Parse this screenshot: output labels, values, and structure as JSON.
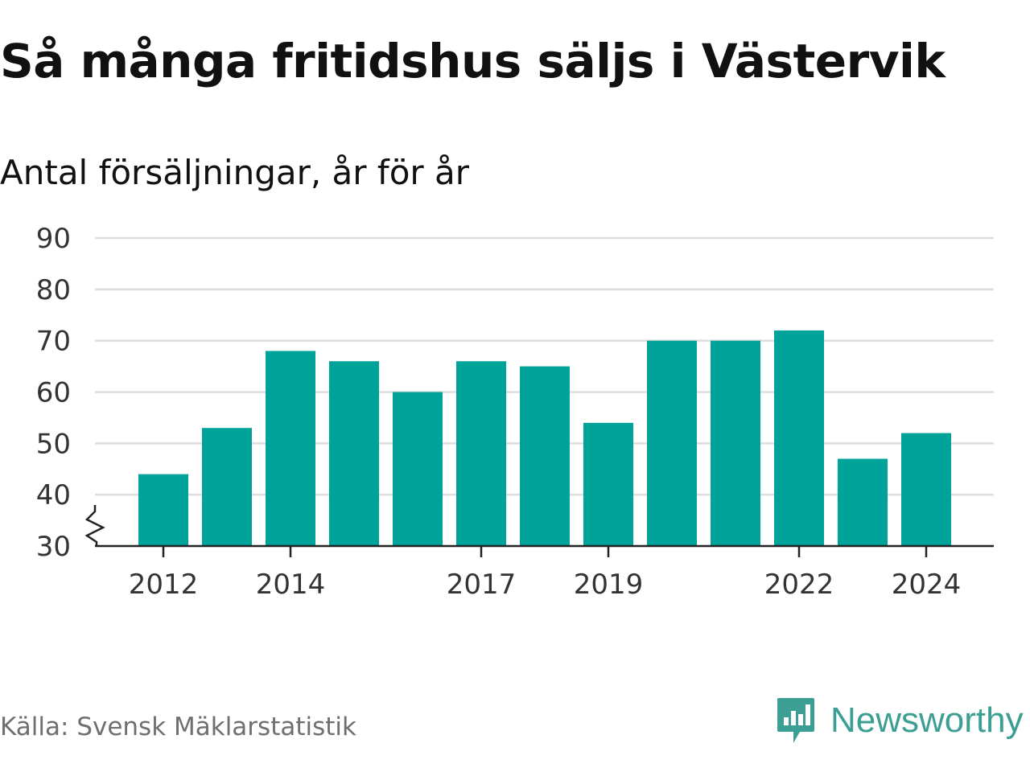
{
  "header": {
    "title": "Så många fritidshus säljs i Västervik",
    "subtitle": "Antal försäljningar, år för år"
  },
  "footer": {
    "source": "Källa: Svensk Mäklarstatistik",
    "brand": "Newsworthy",
    "brand_icon": "chat-bubble-bar-chart-icon",
    "brand_color": "#3d9e93"
  },
  "colors": {
    "bar": "#00a39a",
    "grid": "#dddddd",
    "axis": "#222222"
  },
  "chart_data": {
    "type": "bar",
    "categories": [
      "2012",
      "2013",
      "2014",
      "2015",
      "2016",
      "2017",
      "2018",
      "2019",
      "2020",
      "2021",
      "2022",
      "2023",
      "2024"
    ],
    "values": [
      44,
      53,
      68,
      66,
      60,
      66,
      65,
      54,
      70,
      70,
      72,
      47,
      52
    ],
    "x_tick_labels": [
      "2012",
      "2014",
      "2017",
      "2019",
      "2022",
      "2024"
    ],
    "y_ticks": [
      30,
      40,
      50,
      60,
      70,
      80,
      90
    ],
    "ylim": [
      30,
      90
    ],
    "y_axis_break": true,
    "grid": true,
    "title": "Så många fritidshus säljs i Västervik",
    "subtitle": "Antal försäljningar, år för år",
    "xlabel": "",
    "ylabel": ""
  }
}
